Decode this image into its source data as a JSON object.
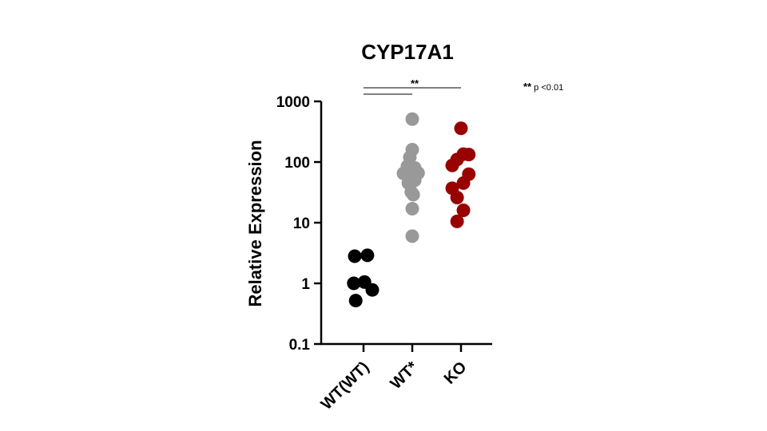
{
  "chart_data": {
    "type": "scatter",
    "title": "CYP17A1",
    "ylabel": "Relative Expression",
    "xlabel": "",
    "yscale": "log",
    "ylim": [
      0.1,
      1000
    ],
    "yticks": [
      {
        "value": 0.1,
        "label": "0.1"
      },
      {
        "value": 1,
        "label": "1"
      },
      {
        "value": 10,
        "label": "10"
      },
      {
        "value": 100,
        "label": "100"
      },
      {
        "value": 1000,
        "label": "1000"
      }
    ],
    "categories": [
      "WT(WT)",
      "WT*",
      "KO"
    ],
    "series": [
      {
        "category": "WT(WT)",
        "color": "#000000",
        "points": [
          {
            "offset": -0.18,
            "y": 2.8
          },
          {
            "offset": 0.08,
            "y": 2.9
          },
          {
            "offset": -0.2,
            "y": 1.0
          },
          {
            "offset": 0.02,
            "y": 1.05
          },
          {
            "offset": 0.18,
            "y": 0.78
          },
          {
            "offset": -0.16,
            "y": 0.52
          }
        ]
      },
      {
        "category": "WT*",
        "color": "#999999",
        "points": [
          {
            "offset": 0.0,
            "y": 510
          },
          {
            "offset": 0.0,
            "y": 160
          },
          {
            "offset": -0.05,
            "y": 120
          },
          {
            "offset": -0.1,
            "y": 85
          },
          {
            "offset": 0.05,
            "y": 80
          },
          {
            "offset": -0.18,
            "y": 65
          },
          {
            "offset": 0.12,
            "y": 66
          },
          {
            "offset": 0.0,
            "y": 58
          },
          {
            "offset": 0.05,
            "y": 50
          },
          {
            "offset": -0.08,
            "y": 45
          },
          {
            "offset": -0.02,
            "y": 32
          },
          {
            "offset": 0.02,
            "y": 29
          },
          {
            "offset": 0.0,
            "y": 17
          },
          {
            "offset": 0.0,
            "y": 6
          }
        ]
      },
      {
        "category": "KO",
        "color": "#990000",
        "points": [
          {
            "offset": 0.0,
            "y": 360
          },
          {
            "offset": 0.05,
            "y": 135
          },
          {
            "offset": 0.16,
            "y": 133
          },
          {
            "offset": -0.08,
            "y": 110
          },
          {
            "offset": -0.18,
            "y": 88
          },
          {
            "offset": 0.16,
            "y": 63
          },
          {
            "offset": 0.05,
            "y": 45
          },
          {
            "offset": -0.18,
            "y": 37
          },
          {
            "offset": -0.08,
            "y": 26
          },
          {
            "offset": 0.05,
            "y": 16
          },
          {
            "offset": -0.08,
            "y": 10.5
          }
        ]
      }
    ],
    "significance": [
      {
        "from": "WT(WT)",
        "to": "KO",
        "label": "**"
      },
      {
        "from": "WT(WT)",
        "to": "WT*",
        "label": ""
      }
    ],
    "annotation": {
      "stars": "**",
      "text": " p <0.01"
    }
  }
}
